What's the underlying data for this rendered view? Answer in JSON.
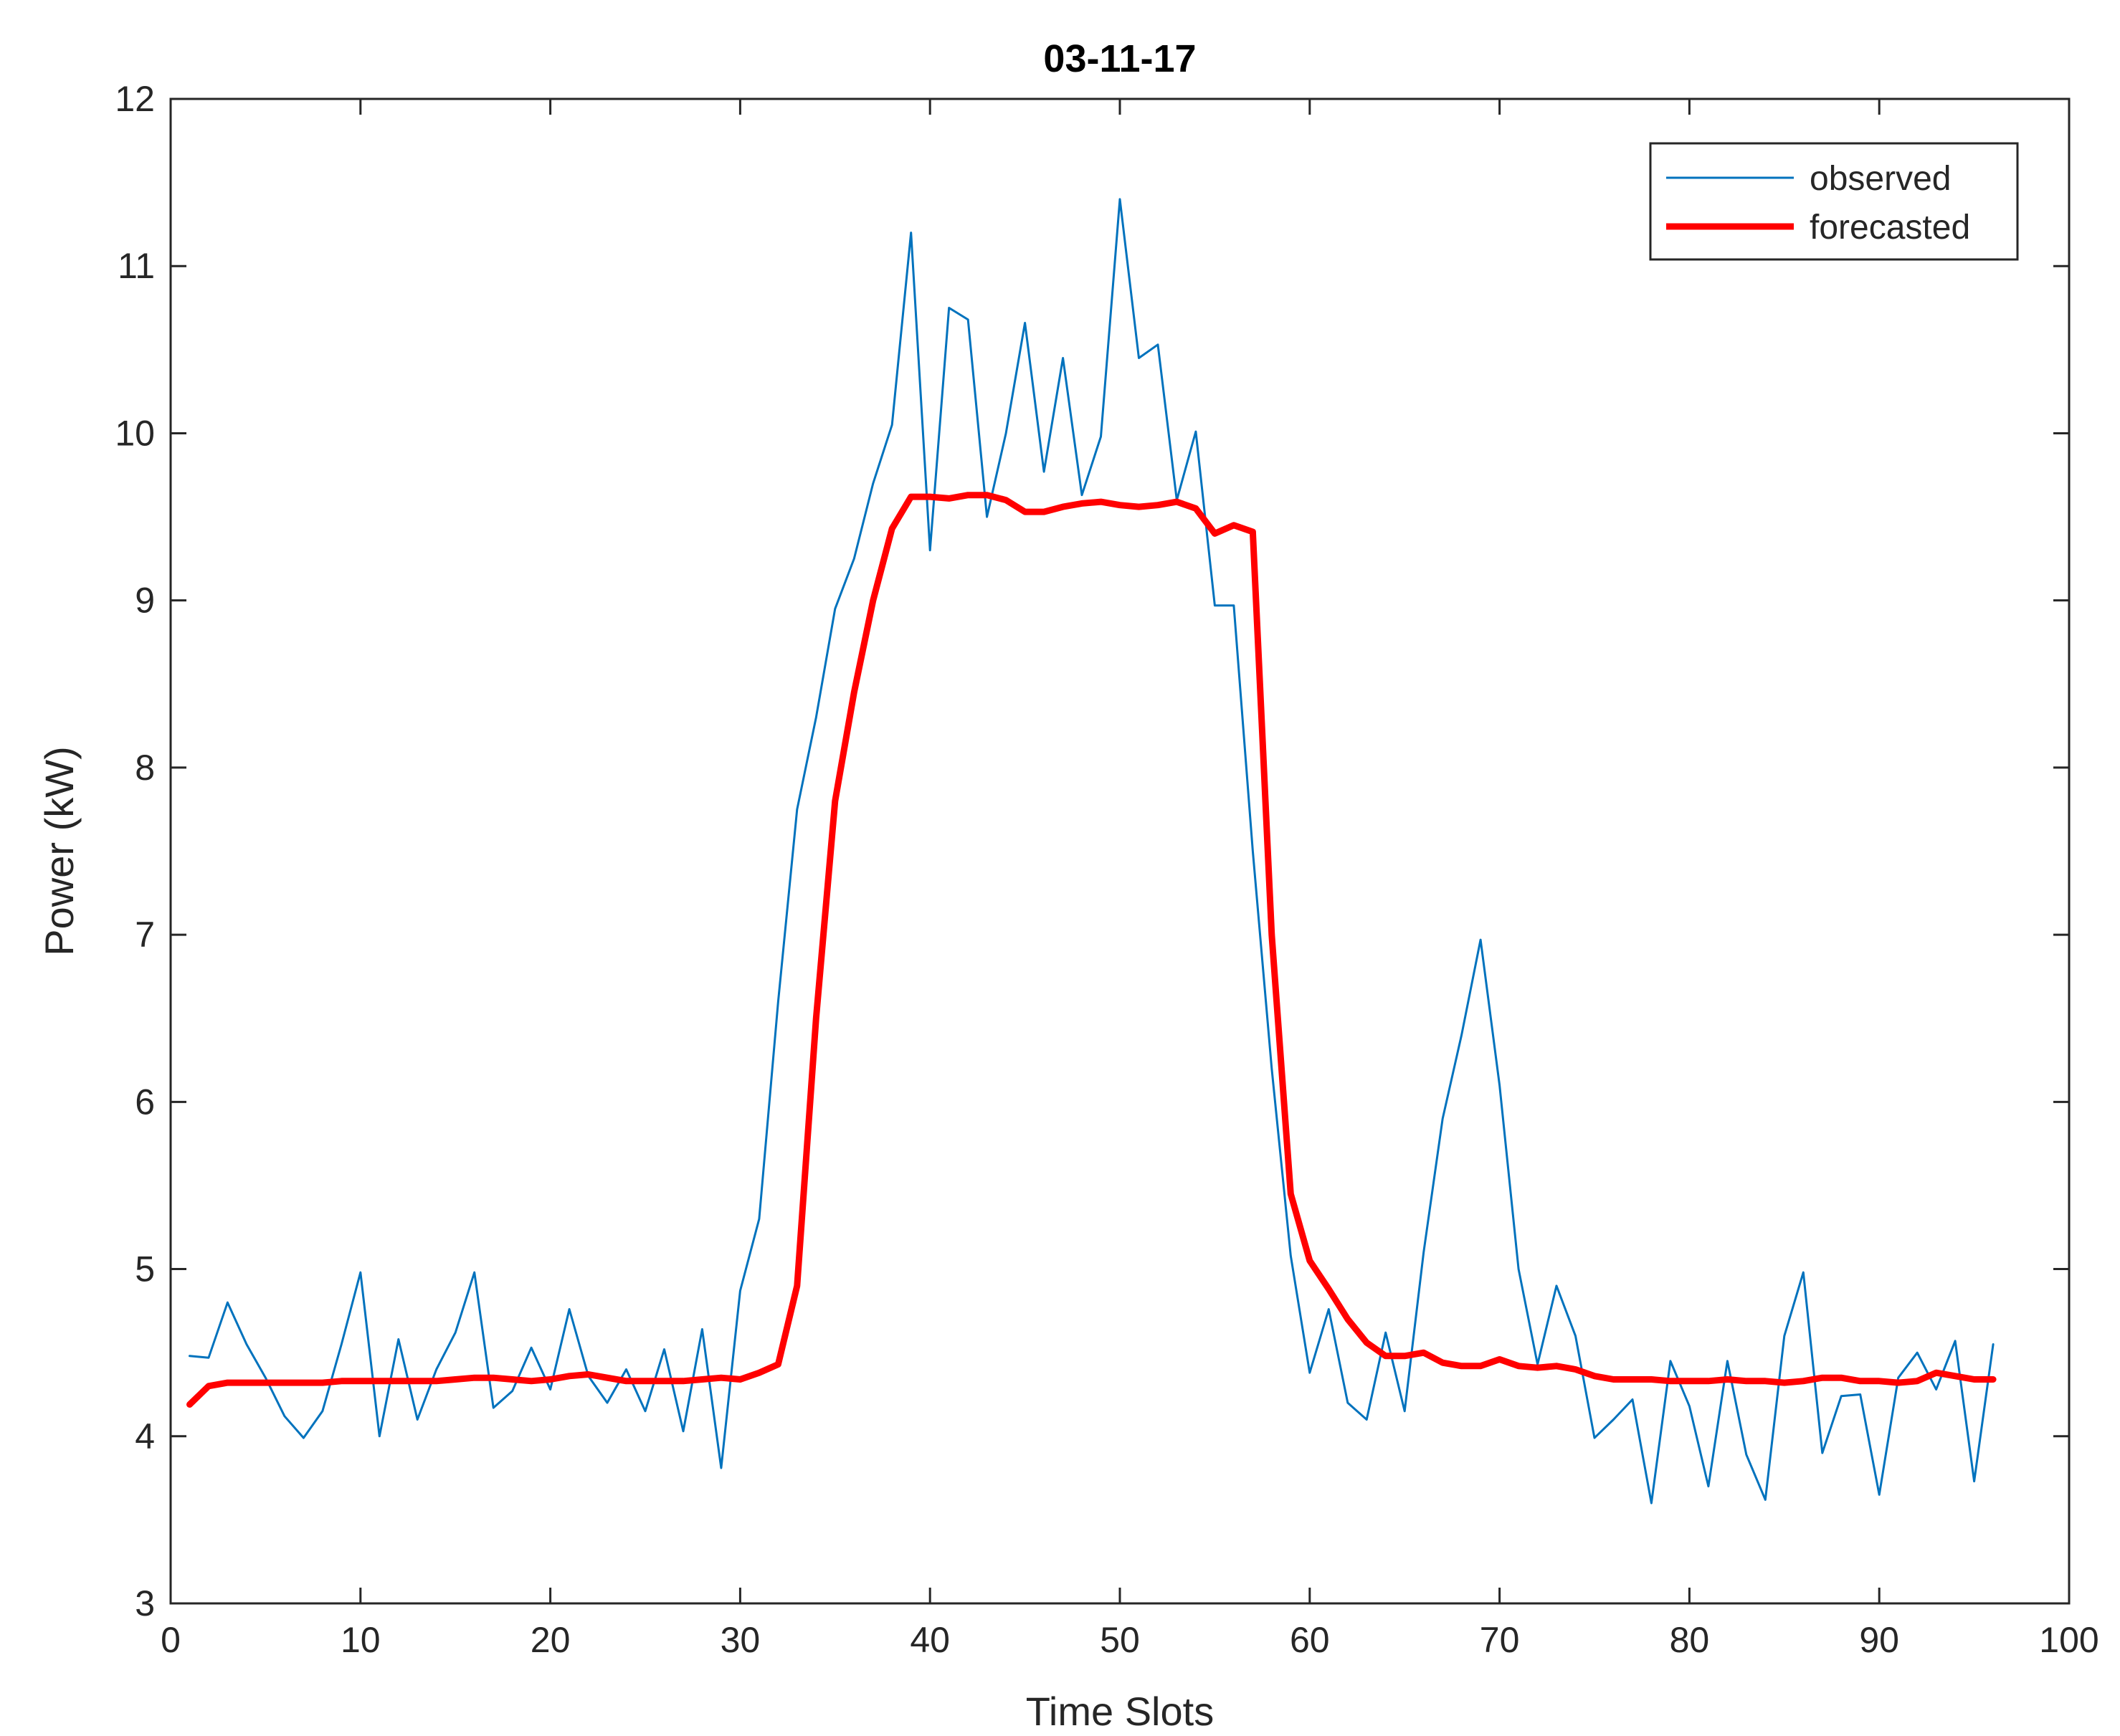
{
  "chart_data": {
    "type": "line",
    "title": "03-11-17",
    "xlabel": "Time Slots",
    "ylabel": "Power (kW)",
    "xlim": [
      0,
      100
    ],
    "ylim": [
      3,
      12
    ],
    "xticks": [
      0,
      10,
      20,
      30,
      40,
      50,
      60,
      70,
      80,
      90,
      100
    ],
    "yticks": [
      3,
      4,
      5,
      6,
      7,
      8,
      9,
      10,
      11,
      12
    ],
    "grid": false,
    "legend_position": "top-right",
    "x": [
      1,
      2,
      3,
      4,
      5,
      6,
      7,
      8,
      9,
      10,
      11,
      12,
      13,
      14,
      15,
      16,
      17,
      18,
      19,
      20,
      21,
      22,
      23,
      24,
      25,
      26,
      27,
      28,
      29,
      30,
      31,
      32,
      33,
      34,
      35,
      36,
      37,
      38,
      39,
      40,
      41,
      42,
      43,
      44,
      45,
      46,
      47,
      48,
      49,
      50,
      51,
      52,
      53,
      54,
      55,
      56,
      57,
      58,
      59,
      60,
      61,
      62,
      63,
      64,
      65,
      66,
      67,
      68,
      69,
      70,
      71,
      72,
      73,
      74,
      75,
      76,
      77,
      78,
      79,
      80,
      81,
      82,
      83,
      84,
      85,
      86,
      87,
      88,
      89,
      90,
      91,
      92,
      93,
      94,
      95,
      96
    ],
    "series": [
      {
        "name": "observed",
        "color": "#0072BD",
        "values": [
          4.48,
          4.47,
          4.8,
          4.55,
          4.35,
          4.12,
          3.99,
          4.15,
          4.55,
          4.98,
          4.0,
          4.58,
          4.1,
          4.4,
          4.62,
          4.98,
          4.17,
          4.27,
          4.53,
          4.28,
          4.76,
          4.36,
          4.2,
          4.4,
          4.15,
          4.52,
          4.03,
          4.64,
          3.81,
          4.87,
          5.3,
          6.6,
          7.75,
          8.3,
          8.95,
          9.25,
          9.7,
          10.05,
          11.2,
          9.3,
          10.75,
          10.68,
          9.5,
          10.0,
          10.66,
          9.77,
          10.45,
          9.63,
          9.98,
          11.4,
          10.45,
          10.53,
          9.6,
          10.01,
          8.97,
          8.97,
          7.5,
          6.2,
          5.08,
          4.38,
          4.76,
          4.2,
          4.1,
          4.62,
          4.15,
          5.1,
          5.9,
          6.4,
          6.97,
          6.1,
          5.0,
          4.43,
          4.9,
          4.6,
          3.99,
          4.1,
          4.22,
          3.6,
          4.45,
          4.18,
          3.7,
          4.45,
          3.89,
          3.62,
          4.6,
          4.98,
          3.9,
          4.24,
          4.25,
          3.65,
          4.35,
          4.5,
          4.28,
          4.57,
          3.73,
          4.55
        ]
      },
      {
        "name": "forecasted",
        "color": "#FF0000",
        "values": [
          4.19,
          4.3,
          4.32,
          4.32,
          4.32,
          4.32,
          4.32,
          4.32,
          4.33,
          4.33,
          4.33,
          4.33,
          4.33,
          4.33,
          4.34,
          4.35,
          4.35,
          4.34,
          4.33,
          4.34,
          4.36,
          4.37,
          4.35,
          4.33,
          4.33,
          4.33,
          4.33,
          4.34,
          4.35,
          4.34,
          4.38,
          4.43,
          4.9,
          6.5,
          7.8,
          8.45,
          9.0,
          9.43,
          9.62,
          9.62,
          9.61,
          9.63,
          9.63,
          9.6,
          9.53,
          9.53,
          9.56,
          9.58,
          9.59,
          9.57,
          9.56,
          9.57,
          9.59,
          9.55,
          9.4,
          9.45,
          9.41,
          7.0,
          5.45,
          5.05,
          4.88,
          4.7,
          4.56,
          4.48,
          4.48,
          4.5,
          4.44,
          4.42,
          4.42,
          4.46,
          4.42,
          4.41,
          4.42,
          4.4,
          4.36,
          4.34,
          4.34,
          4.34,
          4.33,
          4.33,
          4.33,
          4.34,
          4.33,
          4.33,
          4.32,
          4.33,
          4.35,
          4.35,
          4.33,
          4.33,
          4.32,
          4.33,
          4.38,
          4.36,
          4.34,
          4.34
        ]
      }
    ]
  }
}
